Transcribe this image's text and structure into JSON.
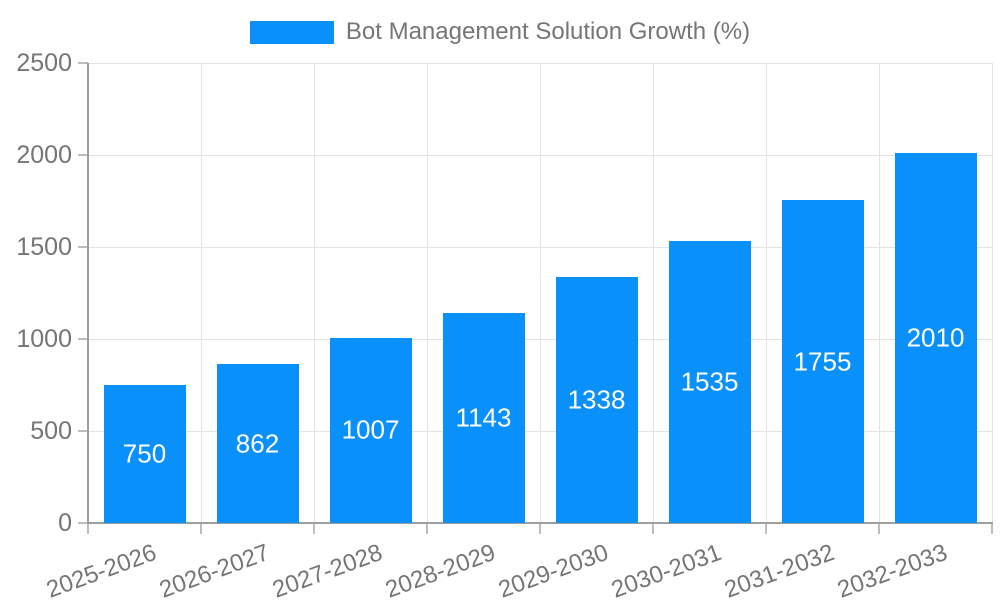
{
  "legend": {
    "position": "top"
  },
  "colors": {
    "bar": "#0a90fa",
    "bar_label_text": "#ffffff",
    "axis_line": "#9e9e9e",
    "gridline": "#e3e3e3",
    "tick_mark": "#bdbdbd",
    "tick_text": "#757575",
    "background": "#ffffff"
  },
  "chart_data": {
    "type": "bar",
    "title": "Bot Management Solution Growth (%)",
    "categories": [
      "2025-2026",
      "2026-2027",
      "2027-2028",
      "2028-2029",
      "2029-2030",
      "2030-2031",
      "2031-2032",
      "2032-2033"
    ],
    "values": [
      750,
      862,
      1007,
      1143,
      1338,
      1535,
      1755,
      2010
    ],
    "bar_labels": [
      750,
      862,
      1007,
      1143,
      1338,
      1535,
      1755,
      2010
    ],
    "xlabel": "",
    "ylabel": "",
    "ylim": [
      0,
      2500
    ],
    "yticks": [
      0,
      500,
      1000,
      1500,
      2000,
      2500
    ],
    "grid": true,
    "legend_position": "top",
    "x_tick_rotation_deg": -20
  }
}
